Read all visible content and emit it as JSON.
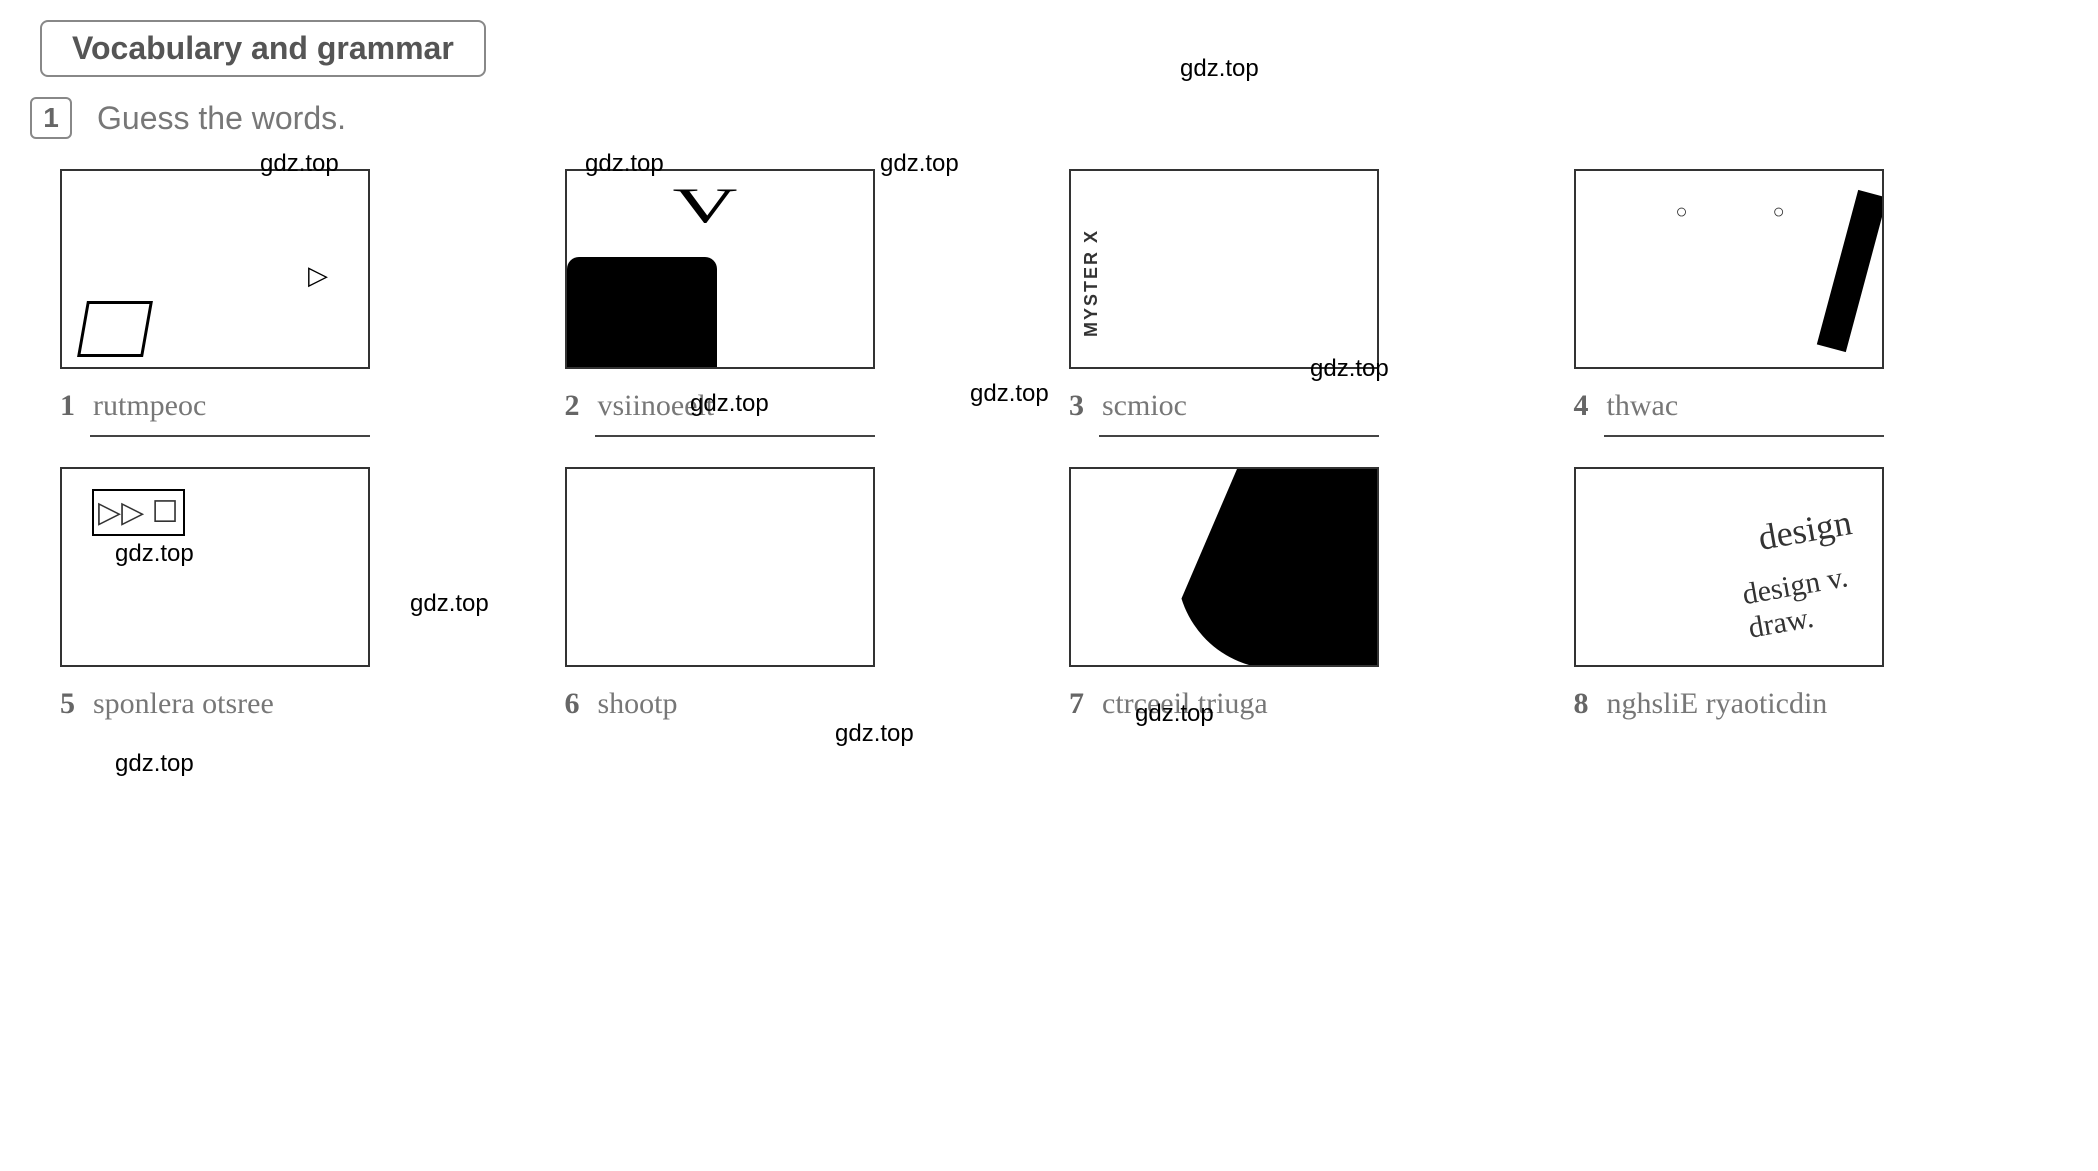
{
  "section": {
    "title": "Vocabulary and grammar"
  },
  "exercise": {
    "number": "1",
    "instruction": "Guess the words."
  },
  "items": [
    {
      "num": "1",
      "scrambled": "rutmpeoc",
      "illus_class": "illus-computer"
    },
    {
      "num": "2",
      "scrambled": "vsiinoeelt",
      "illus_class": "illus-tv"
    },
    {
      "num": "3",
      "scrambled": "scmioc",
      "illus_class": "illus-comics"
    },
    {
      "num": "4",
      "scrambled": "thwac",
      "illus_class": "illus-watch"
    },
    {
      "num": "5",
      "scrambled": "sponlera otsree",
      "illus_class": "illus-stereo"
    },
    {
      "num": "6",
      "scrambled": "shootp",
      "illus_class": "illus-photos"
    },
    {
      "num": "7",
      "scrambled": "ctrceeil triuga",
      "illus_class": "illus-guitar"
    },
    {
      "num": "8",
      "scrambled": "nghsliE ryaoticdin",
      "illus_class": "illus-dict"
    }
  ],
  "watermark_text": "gdz.top",
  "watermark_positions": [
    "wm1",
    "wm2",
    "wm3",
    "wm4",
    "wm5",
    "wm6",
    "wm7",
    "wm8",
    "wm9",
    "wm10",
    "wm11",
    "wm12"
  ],
  "colors": {
    "background": "#ffffff",
    "text_primary": "#555555",
    "text_secondary": "#777777",
    "border": "#888888",
    "line": "#444444"
  },
  "typography": {
    "header_font": "Arial, Helvetica, sans-serif",
    "body_font": "Georgia, serif",
    "header_size_pt": 24,
    "instruction_size_pt": 24,
    "item_size_pt": 22
  }
}
